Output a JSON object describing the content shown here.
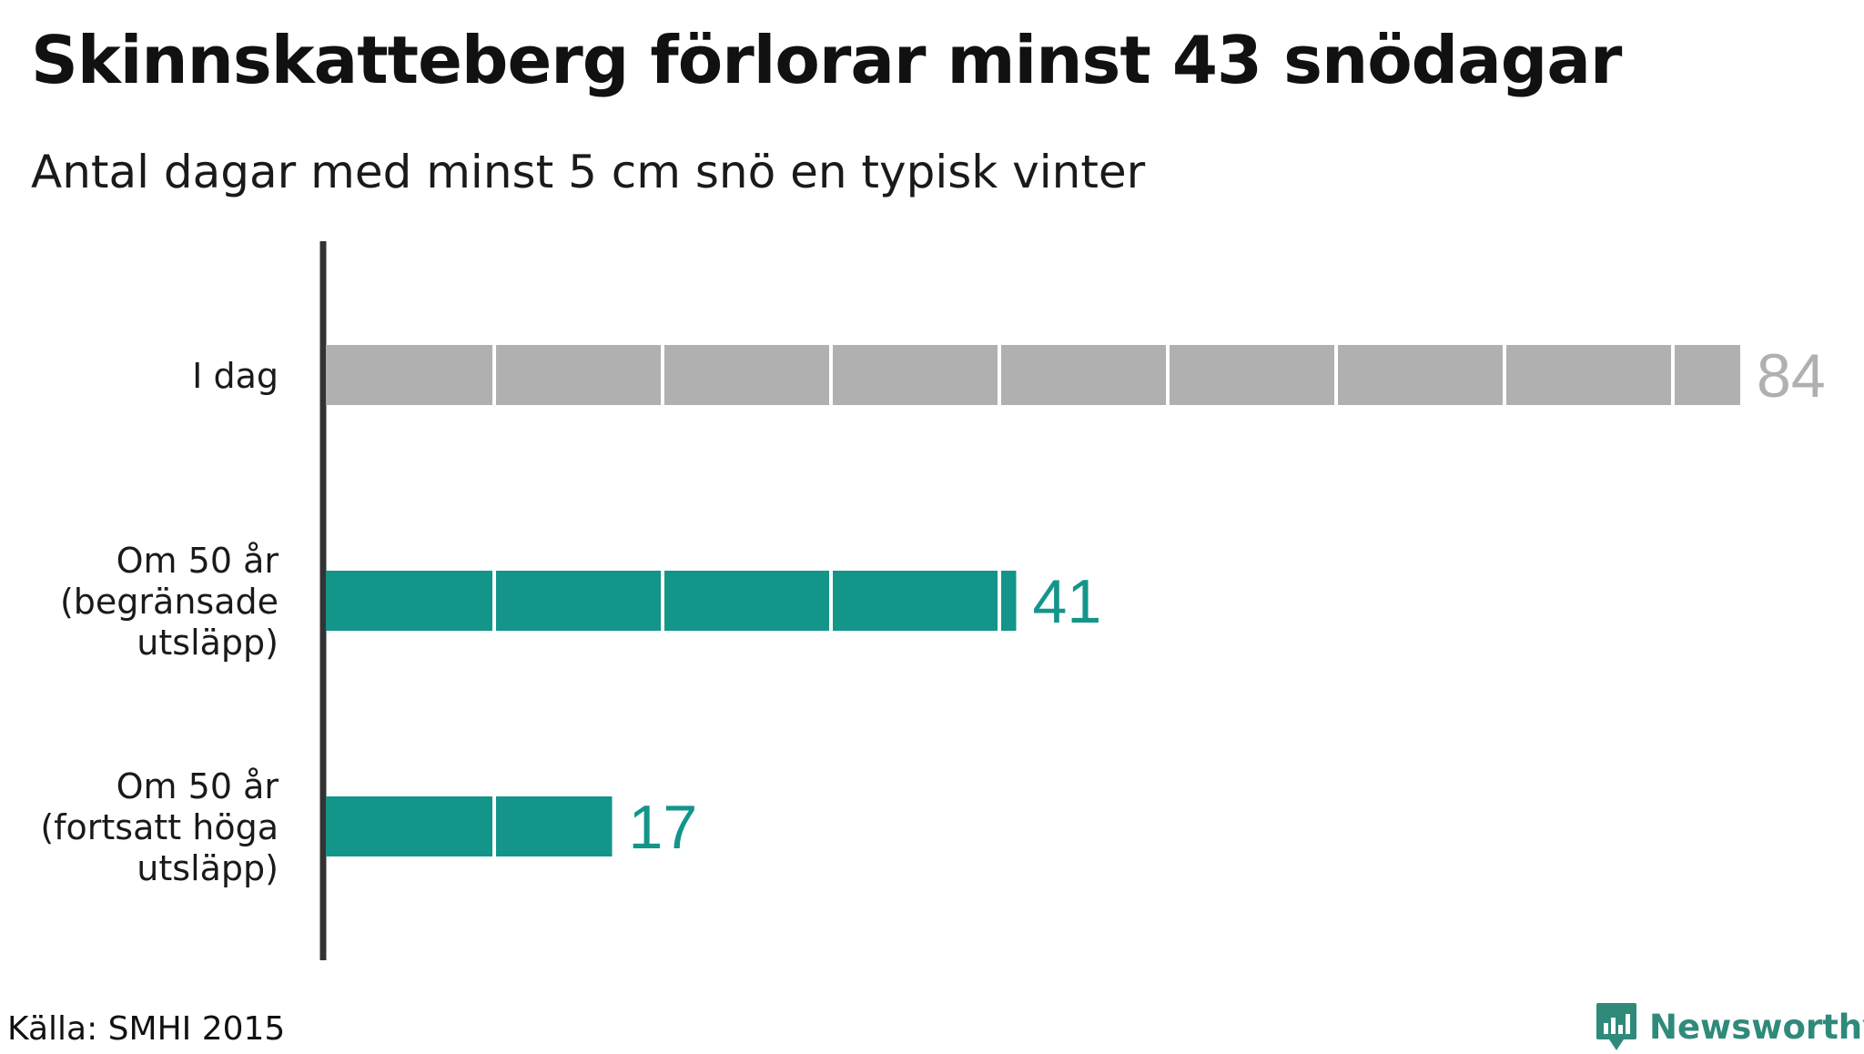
{
  "title": "Skinnskatteberg förlorar minst 43 snödagar",
  "subtitle": "Antal dagar med minst 5 cm snö en typisk vinter",
  "source": "Källa: SMHI 2015",
  "brand": "Newsworthy",
  "colors": {
    "past": "#b0b0b0",
    "future": "#13958a",
    "axis": "#333333",
    "brand": "#2f8a7a"
  },
  "chart_data": {
    "type": "bar",
    "orientation": "horizontal",
    "segment_size": 10,
    "categories": [
      [
        "I dag"
      ],
      [
        "Om 50 år",
        "(begränsade",
        "utsläpp)"
      ],
      [
        "Om 50 år",
        "(fortsatt höga",
        "utsläpp)"
      ]
    ],
    "values": [
      84,
      41,
      17
    ],
    "value_labels": [
      "84",
      "41",
      "17"
    ],
    "bar_colors": [
      "#b0b0b0",
      "#13958a",
      "#13958a"
    ],
    "xlim": [
      0,
      84
    ],
    "grid": false
  }
}
